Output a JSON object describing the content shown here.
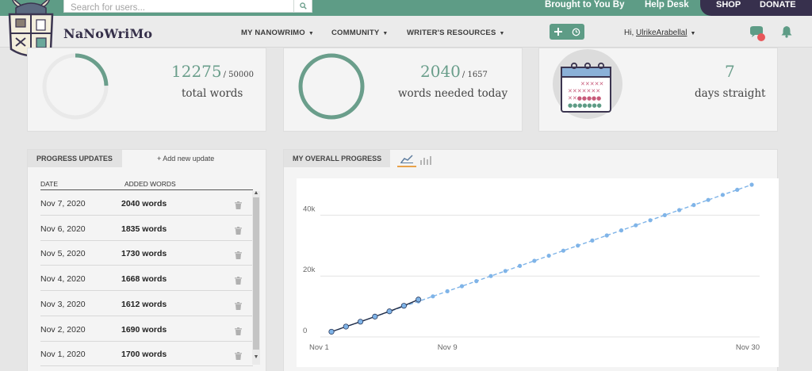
{
  "search": {
    "placeholder": "Search for users..."
  },
  "topbar": {
    "brought_to_you": "Brought to You By",
    "help_desk": "Help Desk",
    "shop": "SHOP",
    "donate": "DONATE"
  },
  "brand": "NaNoWriMo",
  "nav": {
    "items": [
      "MY NANOWRIMO",
      "COMMUNITY",
      "WRITER'S RESOURCES"
    ],
    "greeting": "Hi, ",
    "username": "UlrikeArabellal"
  },
  "colors": {
    "accent": "#5e9c86",
    "dark": "#37304d",
    "notify": "#e8575a",
    "series": "#7fb4e8"
  },
  "stats": {
    "total_words": {
      "value": "12275",
      "of": "/ 50000",
      "label": "total words",
      "progress": 0.2455
    },
    "needed_today": {
      "value": "2040",
      "of": "/ 1657",
      "label": "words needed today",
      "progress": 1.0
    },
    "streak": {
      "value": "7",
      "label": "days straight"
    }
  },
  "progress_updates": {
    "title": "PROGRESS UPDATES",
    "add_label": "+ Add new update",
    "col_date": "DATE",
    "col_words": "ADDED WORDS",
    "rows": [
      {
        "date": "Nov 7, 2020",
        "words": "2040 words"
      },
      {
        "date": "Nov 6, 2020",
        "words": "1835 words"
      },
      {
        "date": "Nov 5, 2020",
        "words": "1730 words"
      },
      {
        "date": "Nov 4, 2020",
        "words": "1668 words"
      },
      {
        "date": "Nov 3, 2020",
        "words": "1612 words"
      },
      {
        "date": "Nov 2, 2020",
        "words": "1690 words"
      },
      {
        "date": "Nov 1, 2020",
        "words": "1700 words"
      }
    ]
  },
  "overall": {
    "title": "MY OVERALL PROGRESS"
  },
  "chart_data": {
    "type": "line",
    "x_tick_labels": [
      "Nov 1",
      "Nov 9",
      "Nov 30"
    ],
    "x_tick_days": [
      1,
      9,
      30
    ],
    "y_tick_labels": [
      "0",
      "20k",
      "40k"
    ],
    "y_tick_values": [
      0,
      20000,
      40000
    ],
    "xlim": [
      1,
      30
    ],
    "ylim": [
      0,
      50000
    ],
    "grid": true,
    "series": [
      {
        "role": "target",
        "style": "dashed",
        "x": [
          1,
          2,
          3,
          4,
          5,
          6,
          7,
          8,
          9,
          10,
          11,
          12,
          13,
          14,
          15,
          16,
          17,
          18,
          19,
          20,
          21,
          22,
          23,
          24,
          25,
          26,
          27,
          28,
          29,
          30
        ],
        "y": [
          1667,
          3333,
          5000,
          6667,
          8333,
          10000,
          11667,
          13333,
          15000,
          16667,
          18333,
          20000,
          21667,
          23333,
          25000,
          26667,
          28333,
          30000,
          31667,
          33333,
          35000,
          36667,
          38333,
          40000,
          41667,
          43333,
          45000,
          46667,
          48333,
          50000
        ]
      },
      {
        "role": "actual",
        "style": "solid",
        "x": [
          1,
          2,
          3,
          4,
          5,
          6,
          7
        ],
        "y": [
          1700,
          3390,
          5002,
          6670,
          8400,
          10235,
          12275
        ]
      }
    ]
  }
}
